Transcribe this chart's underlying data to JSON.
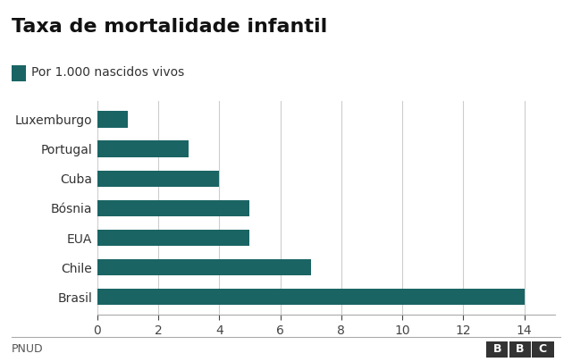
{
  "title": "Taxa de mortalidade infantil",
  "legend_label": "Por 1.000 nascidos vivos",
  "bar_color": "#1a6464",
  "categories": [
    "Brasil",
    "Chile",
    "EUA",
    "Bósnia",
    "Cuba",
    "Portugal",
    "Luxemburgo"
  ],
  "values": [
    14,
    7,
    5,
    5,
    4,
    3,
    1
  ],
  "xlim": [
    0,
    15
  ],
  "xticks": [
    0,
    2,
    4,
    6,
    8,
    10,
    12,
    14
  ],
  "footer_left": "PNUD",
  "footer_right": "BBC",
  "background_color": "#ffffff",
  "title_fontsize": 16,
  "legend_fontsize": 10,
  "tick_fontsize": 10,
  "label_fontsize": 10,
  "bar_height": 0.55
}
